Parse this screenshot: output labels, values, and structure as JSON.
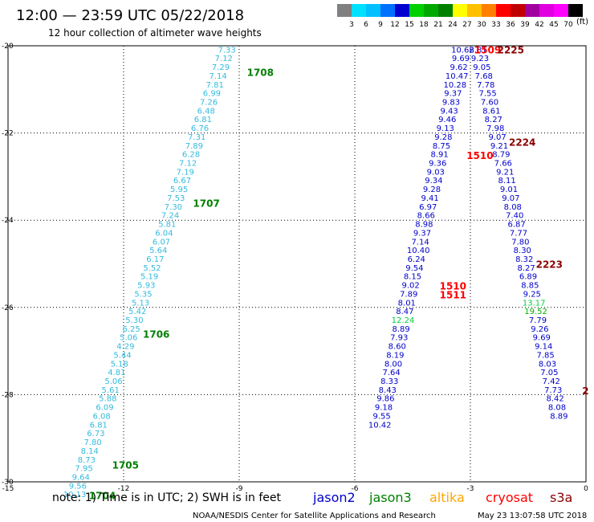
{
  "header": {
    "title": "12:00 — 23:59 UTC 05/22/2018",
    "subtitle": "12 hour collection of altimeter wave heights"
  },
  "colorbar": {
    "unit": "(ft)",
    "ticks": [
      "3",
      "6",
      "9",
      "12",
      "15",
      "18",
      "21",
      "24",
      "27",
      "30",
      "33",
      "36",
      "39",
      "42",
      "45",
      "70"
    ],
    "colors": [
      "#808080",
      "#00e0ff",
      "#00c0ff",
      "#0070ff",
      "#0000d0",
      "#00d000",
      "#00a800",
      "#008000",
      "#ffff00",
      "#ffc000",
      "#ff8000",
      "#ff0000",
      "#c00000",
      "#a000a0",
      "#e000e0",
      "#ff00ff",
      "#000000"
    ]
  },
  "chart_data": {
    "type": "scatter",
    "xlim": [
      -15,
      0
    ],
    "ylim": [
      -30,
      -20
    ],
    "x_ticks": [
      "-15",
      "-12",
      "-9",
      "-6",
      "-3",
      "0"
    ],
    "y_ticks": [
      "-20",
      "-22",
      "-24",
      "-26",
      "-28",
      "-30"
    ],
    "grid": true,
    "series": [
      {
        "name": "jason3",
        "color": "#33bbdd",
        "points": [
          {
            "x": -9.32,
            "y": -20.08,
            "label": "7.33"
          },
          {
            "x": -9.4,
            "y": -20.28,
            "label": "7.12"
          },
          {
            "x": -9.48,
            "y": -20.48,
            "label": "7.29"
          },
          {
            "x": -9.55,
            "y": -20.68,
            "label": "7.14"
          },
          {
            "x": -9.63,
            "y": -20.88,
            "label": "7.81"
          },
          {
            "x": -9.71,
            "y": -21.08,
            "label": "6.99"
          },
          {
            "x": -9.79,
            "y": -21.28,
            "label": "7.26"
          },
          {
            "x": -9.86,
            "y": -21.48,
            "label": "6.48"
          },
          {
            "x": -9.94,
            "y": -21.68,
            "label": "6.81"
          },
          {
            "x": -10.02,
            "y": -21.88,
            "label": "6.76"
          },
          {
            "x": -10.1,
            "y": -22.08,
            "label": "7.31"
          },
          {
            "x": -10.17,
            "y": -22.28,
            "label": "7.89"
          },
          {
            "x": -10.25,
            "y": -22.48,
            "label": "6.28"
          },
          {
            "x": -10.33,
            "y": -22.68,
            "label": "7.12"
          },
          {
            "x": -10.4,
            "y": -22.88,
            "label": "7.19"
          },
          {
            "x": -10.48,
            "y": -23.08,
            "label": "6.67"
          },
          {
            "x": -10.56,
            "y": -23.28,
            "label": "5.95"
          },
          {
            "x": -10.64,
            "y": -23.48,
            "label": "7.53"
          },
          {
            "x": -10.71,
            "y": -23.68,
            "label": "7.30"
          },
          {
            "x": -10.79,
            "y": -23.88,
            "label": "7.24"
          },
          {
            "x": -10.87,
            "y": -24.08,
            "label": "5.81"
          },
          {
            "x": -10.95,
            "y": -24.28,
            "label": "6.04"
          },
          {
            "x": -11.02,
            "y": -24.48,
            "label": "6.07"
          },
          {
            "x": -11.1,
            "y": -24.68,
            "label": "5.64"
          },
          {
            "x": -11.18,
            "y": -24.88,
            "label": "6.17"
          },
          {
            "x": -11.26,
            "y": -25.08,
            "label": "5.52"
          },
          {
            "x": -11.33,
            "y": -25.28,
            "label": "5.19"
          },
          {
            "x": -11.41,
            "y": -25.48,
            "label": "5.93"
          },
          {
            "x": -11.49,
            "y": -25.68,
            "label": "5.35"
          },
          {
            "x": -11.56,
            "y": -25.88,
            "label": "5.13"
          },
          {
            "x": -11.64,
            "y": -26.08,
            "label": "5.42"
          },
          {
            "x": -11.72,
            "y": -26.28,
            "label": "5.30"
          },
          {
            "x": -11.8,
            "y": -26.48,
            "label": "6.25"
          },
          {
            "x": -11.87,
            "y": -26.68,
            "label": "5.06"
          },
          {
            "x": -11.95,
            "y": -26.88,
            "label": "4.29"
          },
          {
            "x": -12.03,
            "y": -27.08,
            "label": "5.44"
          },
          {
            "x": -12.11,
            "y": -27.28,
            "label": "5.18"
          },
          {
            "x": -12.18,
            "y": -27.48,
            "label": "4.81"
          },
          {
            "x": -12.26,
            "y": -27.68,
            "label": "5.06"
          },
          {
            "x": -12.34,
            "y": -27.88,
            "label": "5.61"
          },
          {
            "x": -12.41,
            "y": -28.08,
            "label": "5.88"
          },
          {
            "x": -12.49,
            "y": -28.28,
            "label": "6.09"
          },
          {
            "x": -12.57,
            "y": -28.48,
            "label": "6.08"
          },
          {
            "x": -12.65,
            "y": -28.68,
            "label": "6.81"
          },
          {
            "x": -12.72,
            "y": -28.88,
            "label": "6.73"
          },
          {
            "x": -12.8,
            "y": -29.08,
            "label": "7.80"
          },
          {
            "x": -12.88,
            "y": -29.28,
            "label": "8.14"
          },
          {
            "x": -12.96,
            "y": -29.48,
            "label": "8.73"
          },
          {
            "x": -13.03,
            "y": -29.68,
            "label": "7.95"
          },
          {
            "x": -13.11,
            "y": -29.88,
            "label": "9.64"
          },
          {
            "x": -13.19,
            "y": -30.08,
            "label": "9.56"
          },
          {
            "x": -13.27,
            "y": -30.28,
            "label": "10.13"
          }
        ]
      },
      {
        "name": "jason2",
        "color": "#0000cc",
        "points": [
          {
            "x": -3.2,
            "y": -20.08,
            "label": "10.62"
          },
          {
            "x": -3.25,
            "y": -20.28,
            "label": "9.69"
          },
          {
            "x": -3.3,
            "y": -20.48,
            "label": "9.62"
          },
          {
            "x": -3.35,
            "y": -20.68,
            "label": "10.47"
          },
          {
            "x": -3.4,
            "y": -20.88,
            "label": "10.28"
          },
          {
            "x": -3.45,
            "y": -21.08,
            "label": "9.37"
          },
          {
            "x": -3.5,
            "y": -21.28,
            "label": "9.83"
          },
          {
            "x": -3.55,
            "y": -21.48,
            "label": "9.43"
          },
          {
            "x": -3.6,
            "y": -21.68,
            "label": "9.46"
          },
          {
            "x": -3.65,
            "y": -21.88,
            "label": "9.13"
          },
          {
            "x": -3.7,
            "y": -22.08,
            "label": "9.28"
          },
          {
            "x": -3.75,
            "y": -22.28,
            "label": "8.75"
          },
          {
            "x": -3.8,
            "y": -22.48,
            "label": "8.91"
          },
          {
            "x": -3.85,
            "y": -22.68,
            "label": "9.36"
          },
          {
            "x": -3.9,
            "y": -22.88,
            "label": "9.03"
          },
          {
            "x": -3.95,
            "y": -23.08,
            "label": "9.34"
          },
          {
            "x": -4.0,
            "y": -23.28,
            "label": "9.28"
          },
          {
            "x": -4.05,
            "y": -23.48,
            "label": "9.41"
          },
          {
            "x": -4.1,
            "y": -23.68,
            "label": "6.97"
          },
          {
            "x": -4.15,
            "y": -23.88,
            "label": "8.66"
          },
          {
            "x": -4.2,
            "y": -24.08,
            "label": "8.98"
          },
          {
            "x": -4.25,
            "y": -24.28,
            "label": "9.37"
          },
          {
            "x": -4.3,
            "y": -24.48,
            "label": "7.14"
          },
          {
            "x": -4.35,
            "y": -24.68,
            "label": "10.40"
          },
          {
            "x": -4.4,
            "y": -24.88,
            "label": "6.24"
          },
          {
            "x": -4.45,
            "y": -25.08,
            "label": "9.54"
          },
          {
            "x": -4.5,
            "y": -25.28,
            "label": "8.15"
          },
          {
            "x": -4.55,
            "y": -25.48,
            "label": "9.02"
          },
          {
            "x": -4.6,
            "y": -25.68,
            "label": "7.89"
          },
          {
            "x": -4.65,
            "y": -25.88,
            "label": "8.01"
          },
          {
            "x": -4.7,
            "y": -26.08,
            "label": "8.47"
          },
          {
            "x": -4.75,
            "y": -26.28,
            "label": "12.24"
          },
          {
            "x": -4.8,
            "y": -26.48,
            "label": "8.89"
          },
          {
            "x": -4.85,
            "y": -26.68,
            "label": "7.93"
          },
          {
            "x": -4.9,
            "y": -26.88,
            "label": "8.60"
          },
          {
            "x": -4.95,
            "y": -27.08,
            "label": "8.19"
          },
          {
            "x": -5.0,
            "y": -27.28,
            "label": "8.00"
          },
          {
            "x": -5.05,
            "y": -27.48,
            "label": "7.64"
          },
          {
            "x": -5.1,
            "y": -27.68,
            "label": "8.33"
          },
          {
            "x": -5.15,
            "y": -27.88,
            "label": "8.43"
          },
          {
            "x": -5.2,
            "y": -28.08,
            "label": "9.86"
          },
          {
            "x": -5.25,
            "y": -28.28,
            "label": "9.18"
          },
          {
            "x": -5.3,
            "y": -28.48,
            "label": "9.55"
          },
          {
            "x": -5.35,
            "y": -28.68,
            "label": "10.42"
          }
        ]
      },
      {
        "name": "jason2 (descending)",
        "color": "#0000cc",
        "points": [
          {
            "x": -2.8,
            "y": -20.08,
            "label": "8.81"
          },
          {
            "x": -2.75,
            "y": -20.28,
            "label": "9.23"
          },
          {
            "x": -2.7,
            "y": -20.48,
            "label": "9.05"
          },
          {
            "x": -2.65,
            "y": -20.68,
            "label": "7.68"
          },
          {
            "x": -2.6,
            "y": -20.88,
            "label": "7.78"
          },
          {
            "x": -2.55,
            "y": -21.08,
            "label": "7.55"
          },
          {
            "x": -2.5,
            "y": -21.28,
            "label": "7.60"
          },
          {
            "x": -2.45,
            "y": -21.48,
            "label": "8.61"
          },
          {
            "x": -2.4,
            "y": -21.68,
            "label": "8.27"
          },
          {
            "x": -2.35,
            "y": -21.88,
            "label": "7.98"
          },
          {
            "x": -2.3,
            "y": -22.08,
            "label": "9.07"
          },
          {
            "x": -2.25,
            "y": -22.28,
            "label": "9.21"
          },
          {
            "x": -2.2,
            "y": -22.48,
            "label": "8.79"
          },
          {
            "x": -2.15,
            "y": -22.68,
            "label": "7.66"
          },
          {
            "x": -2.1,
            "y": -22.88,
            "label": "9.21"
          },
          {
            "x": -2.05,
            "y": -23.08,
            "label": "8.11"
          },
          {
            "x": -2.0,
            "y": -23.28,
            "label": "9.01"
          },
          {
            "x": -1.95,
            "y": -23.48,
            "label": "9.07"
          },
          {
            "x": -1.9,
            "y": -23.68,
            "label": "8.08"
          },
          {
            "x": -1.85,
            "y": -23.88,
            "label": "7.40"
          },
          {
            "x": -1.8,
            "y": -24.08,
            "label": "6.87"
          },
          {
            "x": -1.75,
            "y": -24.28,
            "label": "7.77"
          },
          {
            "x": -1.7,
            "y": -24.48,
            "label": "7.80"
          },
          {
            "x": -1.65,
            "y": -24.68,
            "label": "8.30"
          },
          {
            "x": -1.6,
            "y": -24.88,
            "label": "8.32"
          },
          {
            "x": -1.55,
            "y": -25.08,
            "label": "8.27"
          },
          {
            "x": -1.5,
            "y": -25.28,
            "label": "6.89"
          },
          {
            "x": -1.45,
            "y": -25.48,
            "label": "8.85"
          },
          {
            "x": -1.4,
            "y": -25.68,
            "label": "9.25"
          },
          {
            "x": -1.35,
            "y": -25.88,
            "label": "13.17"
          },
          {
            "x": -1.3,
            "y": -26.08,
            "label": "19.52"
          },
          {
            "x": -1.25,
            "y": -26.28,
            "label": "7.79"
          },
          {
            "x": -1.2,
            "y": -26.48,
            "label": "9.26"
          },
          {
            "x": -1.15,
            "y": -26.68,
            "label": "9.69"
          },
          {
            "x": -1.1,
            "y": -26.88,
            "label": "9.14"
          },
          {
            "x": -1.05,
            "y": -27.08,
            "label": "7.85"
          },
          {
            "x": -1.0,
            "y": -27.28,
            "label": "8.03"
          },
          {
            "x": -0.95,
            "y": -27.48,
            "label": "7.05"
          },
          {
            "x": -0.9,
            "y": -27.68,
            "label": "7.42"
          },
          {
            "x": -0.85,
            "y": -27.88,
            "label": "7.73"
          },
          {
            "x": -0.8,
            "y": -28.08,
            "label": "8.42"
          },
          {
            "x": -0.75,
            "y": -28.28,
            "label": "8.08"
          },
          {
            "x": -0.7,
            "y": -28.48,
            "label": "8.89"
          }
        ]
      }
    ],
    "time_labels": [
      {
        "text": "1708",
        "x": -8.8,
        "y": -20.6,
        "color": "#008000"
      },
      {
        "text": "1707",
        "x": -10.2,
        "y": -23.6,
        "color": "#008000"
      },
      {
        "text": "1706",
        "x": -11.5,
        "y": -26.6,
        "color": "#008000"
      },
      {
        "text": "1705",
        "x": -12.3,
        "y": -29.6,
        "color": "#008000"
      },
      {
        "text": "1704",
        "x": -12.9,
        "y": -30.3,
        "color": "#008000"
      },
      {
        "text": "1509",
        "x": -2.9,
        "y": -20.08,
        "color": "#ff0000"
      },
      {
        "text": "2225",
        "x": -2.3,
        "y": -20.08,
        "color": "#8b0000"
      },
      {
        "text": "2224",
        "x": -2.0,
        "y": -22.2,
        "color": "#8b0000"
      },
      {
        "text": "1510",
        "x": -3.1,
        "y": -22.5,
        "color": "#ff0000"
      },
      {
        "text": "2223",
        "x": -1.3,
        "y": -25.0,
        "color": "#8b0000"
      },
      {
        "text": "1510",
        "x": -3.8,
        "y": -25.5,
        "color": "#ff0000"
      },
      {
        "text": "1511",
        "x": -3.8,
        "y": -25.7,
        "color": "#ff0000"
      },
      {
        "text": "2",
        "x": -0.1,
        "y": -27.9,
        "color": "#8b0000"
      }
    ]
  },
  "footer": {
    "note": "note: 1) Time is in UTC; 2) SWH is in feet",
    "legend": [
      {
        "name": "jason2",
        "color": "#0000cc"
      },
      {
        "name": "jason3",
        "color": "#008000"
      },
      {
        "name": "altika",
        "color": "#ffa500"
      },
      {
        "name": "cryosat",
        "color": "#ff0000"
      },
      {
        "name": "s3a",
        "color": "#8b0000"
      }
    ],
    "credit": "NOAA/NESDIS Center for Satellite Applications and Research",
    "timestamp": "May 23 13:07:58 UTC 2018"
  }
}
